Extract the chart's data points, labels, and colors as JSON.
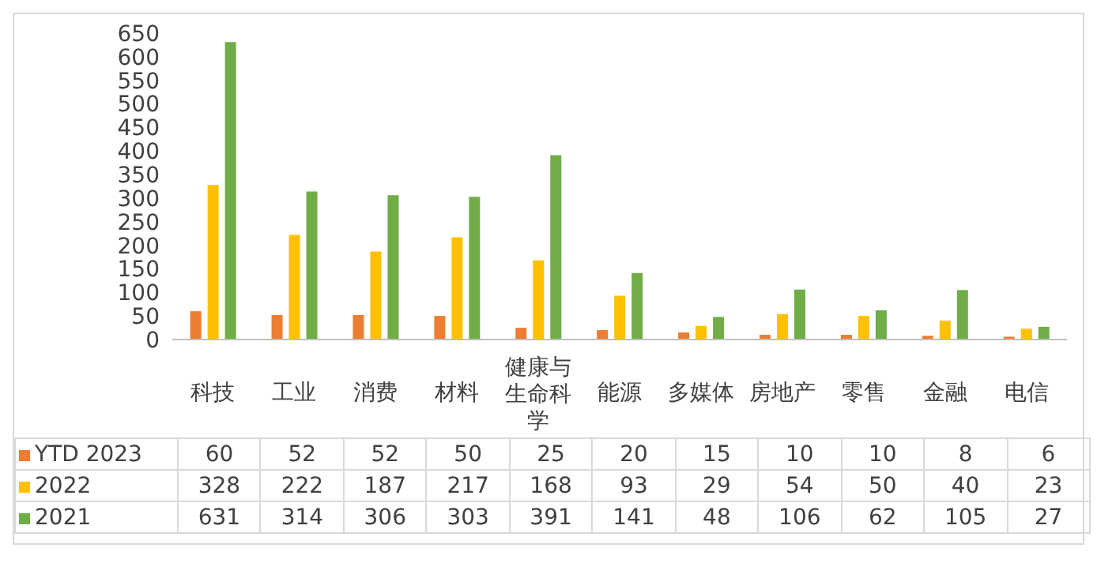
{
  "chart_data": {
    "type": "bar",
    "categories": [
      "科技",
      "工业",
      "消费",
      "材料",
      "健康与生命科学",
      "能源",
      "多媒体",
      "房地产",
      "零售",
      "金融",
      "电信"
    ],
    "series": [
      {
        "name": "YTD 2023",
        "color": "#ed7d31",
        "values": [
          60,
          52,
          52,
          50,
          25,
          20,
          15,
          10,
          10,
          8,
          6
        ]
      },
      {
        "name": "2022",
        "color": "#ffc000",
        "values": [
          328,
          222,
          187,
          217,
          168,
          93,
          29,
          54,
          50,
          40,
          23
        ]
      },
      {
        "name": "2021",
        "color": "#70ad47",
        "values": [
          631,
          314,
          306,
          303,
          391,
          141,
          48,
          106,
          62,
          105,
          27
        ]
      }
    ],
    "ylim": [
      0,
      650
    ],
    "yticks": [
      0,
      50,
      100,
      150,
      200,
      250,
      300,
      350,
      400,
      450,
      500,
      550,
      600,
      650
    ],
    "grid": false,
    "legend": "bottom left",
    "data_labels": true
  }
}
